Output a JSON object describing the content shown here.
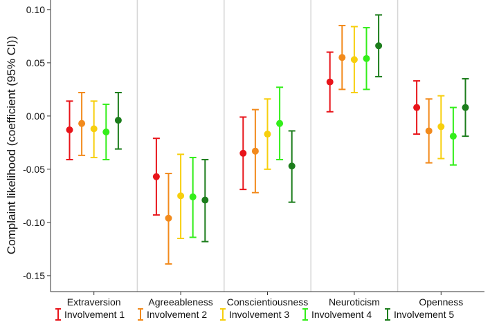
{
  "chart_data": {
    "type": "errorbar",
    "title": "",
    "xlabel": "",
    "ylabel": "Complaint likelihood (coefficient (95% CI))",
    "ylim": [
      -0.165,
      0.109
    ],
    "yticks": [
      0.1,
      0.05,
      0.0,
      -0.05,
      -0.1,
      -0.15
    ],
    "ytick_labels": [
      "0.10",
      "0.05",
      "0.00",
      "-0.05",
      "-0.10",
      "-0.15"
    ],
    "categories": [
      "Extraversion",
      "Agreeableness",
      "Conscientiousness",
      "Neuroticism",
      "Openness"
    ],
    "legend_position": "bottom",
    "series": [
      {
        "name": "Involvement 1",
        "color": "#e8141a",
        "values": [
          -0.013,
          -0.057,
          -0.035,
          0.032,
          0.008
        ],
        "lower": [
          -0.041,
          -0.093,
          -0.069,
          0.004,
          -0.017
        ],
        "upper": [
          0.014,
          -0.021,
          -0.001,
          0.06,
          0.033
        ]
      },
      {
        "name": "Involvement 2",
        "color": "#f28a1c",
        "values": [
          -0.007,
          -0.096,
          -0.033,
          0.055,
          -0.014
        ],
        "lower": [
          -0.037,
          -0.139,
          -0.072,
          0.025,
          -0.044
        ],
        "upper": [
          0.022,
          -0.054,
          0.006,
          0.085,
          0.016
        ]
      },
      {
        "name": "Involvement 3",
        "color": "#f7cf0d",
        "values": [
          -0.012,
          -0.075,
          -0.017,
          0.053,
          -0.01
        ],
        "lower": [
          -0.039,
          -0.115,
          -0.05,
          0.022,
          -0.04
        ],
        "upper": [
          0.014,
          -0.036,
          0.016,
          0.084,
          0.019
        ]
      },
      {
        "name": "Involvement 4",
        "color": "#33ee1a",
        "values": [
          -0.015,
          -0.076,
          -0.007,
          0.054,
          -0.019
        ],
        "lower": [
          -0.041,
          -0.114,
          -0.041,
          0.025,
          -0.046
        ],
        "upper": [
          0.011,
          -0.039,
          0.027,
          0.083,
          0.008
        ]
      },
      {
        "name": "Involvement 5",
        "color": "#1c7d1c",
        "values": [
          -0.004,
          -0.079,
          -0.047,
          0.066,
          0.008
        ],
        "lower": [
          -0.031,
          -0.118,
          -0.081,
          0.037,
          -0.019
        ],
        "upper": [
          0.022,
          -0.041,
          -0.014,
          0.095,
          0.035
        ]
      }
    ]
  }
}
